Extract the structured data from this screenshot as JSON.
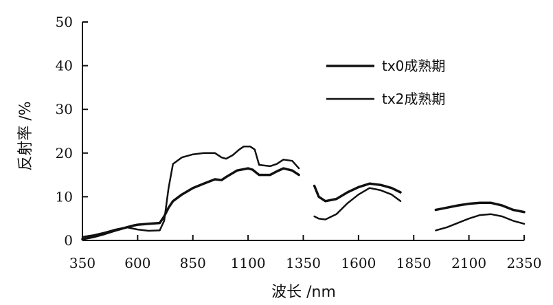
{
  "chart_data": {
    "type": "line",
    "xlabel": "波长 /nm",
    "ylabel": "反射率 /%",
    "xlim": [
      350,
      2350
    ],
    "ylim": [
      0,
      50
    ],
    "x_ticks": [
      350,
      600,
      850,
      1100,
      1350,
      1600,
      1850,
      2100,
      2350
    ],
    "y_ticks": [
      0,
      10,
      20,
      30,
      40,
      50
    ],
    "grid": false,
    "legend_position": "top-right",
    "series": [
      {
        "name": "tx0成熟期",
        "color": "#111111",
        "segments": [
          [
            [
              350,
              0.3
            ],
            [
              400,
              0.8
            ],
            [
              450,
              1.5
            ],
            [
              500,
              2.3
            ],
            [
              550,
              3.0
            ],
            [
              580,
              3.4
            ],
            [
              600,
              3.6
            ],
            [
              650,
              3.8
            ],
            [
              700,
              4.0
            ],
            [
              720,
              5.5
            ],
            [
              740,
              7.5
            ],
            [
              760,
              9.0
            ],
            [
              800,
              10.5
            ],
            [
              850,
              12.0
            ],
            [
              900,
              13.0
            ],
            [
              950,
              14.0
            ],
            [
              980,
              13.8
            ],
            [
              1000,
              14.5
            ],
            [
              1050,
              16.0
            ],
            [
              1100,
              16.5
            ],
            [
              1120,
              16.2
            ],
            [
              1150,
              15.0
            ],
            [
              1200,
              15.0
            ],
            [
              1230,
              15.8
            ],
            [
              1260,
              16.5
            ],
            [
              1300,
              16.0
            ],
            [
              1330,
              15.0
            ]
          ],
          [
            [
              1400,
              12.5
            ],
            [
              1420,
              10.0
            ],
            [
              1450,
              9.0
            ],
            [
              1500,
              9.5
            ],
            [
              1550,
              11.0
            ],
            [
              1600,
              12.2
            ],
            [
              1650,
              13.0
            ],
            [
              1700,
              12.7
            ],
            [
              1750,
              12.0
            ],
            [
              1790,
              11.0
            ]
          ],
          [
            [
              1950,
              7.0
            ],
            [
              2000,
              7.5
            ],
            [
              2050,
              8.0
            ],
            [
              2100,
              8.4
            ],
            [
              2150,
              8.6
            ],
            [
              2200,
              8.6
            ],
            [
              2250,
              8.0
            ],
            [
              2300,
              7.0
            ],
            [
              2350,
              6.5
            ]
          ]
        ]
      },
      {
        "name": "tx2成熟期",
        "color": "#111111",
        "segments": [
          [
            [
              350,
              0.8
            ],
            [
              400,
              1.2
            ],
            [
              450,
              1.8
            ],
            [
              500,
              2.5
            ],
            [
              550,
              3.0
            ],
            [
              600,
              2.5
            ],
            [
              650,
              2.2
            ],
            [
              700,
              2.3
            ],
            [
              720,
              4.5
            ],
            [
              740,
              12.0
            ],
            [
              760,
              17.5
            ],
            [
              800,
              19.0
            ],
            [
              850,
              19.7
            ],
            [
              900,
              20.0
            ],
            [
              950,
              20.0
            ],
            [
              980,
              19.0
            ],
            [
              1000,
              18.7
            ],
            [
              1030,
              19.5
            ],
            [
              1060,
              20.8
            ],
            [
              1080,
              21.5
            ],
            [
              1110,
              21.5
            ],
            [
              1130,
              20.8
            ],
            [
              1150,
              17.3
            ],
            [
              1200,
              17.0
            ],
            [
              1230,
              17.5
            ],
            [
              1260,
              18.5
            ],
            [
              1300,
              18.2
            ],
            [
              1330,
              16.5
            ]
          ],
          [
            [
              1400,
              5.5
            ],
            [
              1420,
              5.0
            ],
            [
              1450,
              4.8
            ],
            [
              1500,
              6.0
            ],
            [
              1550,
              8.5
            ],
            [
              1600,
              10.5
            ],
            [
              1650,
              12.0
            ],
            [
              1700,
              11.5
            ],
            [
              1750,
              10.5
            ],
            [
              1790,
              9.0
            ]
          ],
          [
            [
              1950,
              2.3
            ],
            [
              2000,
              3.0
            ],
            [
              2050,
              4.0
            ],
            [
              2100,
              5.0
            ],
            [
              2150,
              5.8
            ],
            [
              2200,
              6.0
            ],
            [
              2250,
              5.5
            ],
            [
              2300,
              4.5
            ],
            [
              2350,
              3.8
            ]
          ]
        ]
      }
    ]
  }
}
